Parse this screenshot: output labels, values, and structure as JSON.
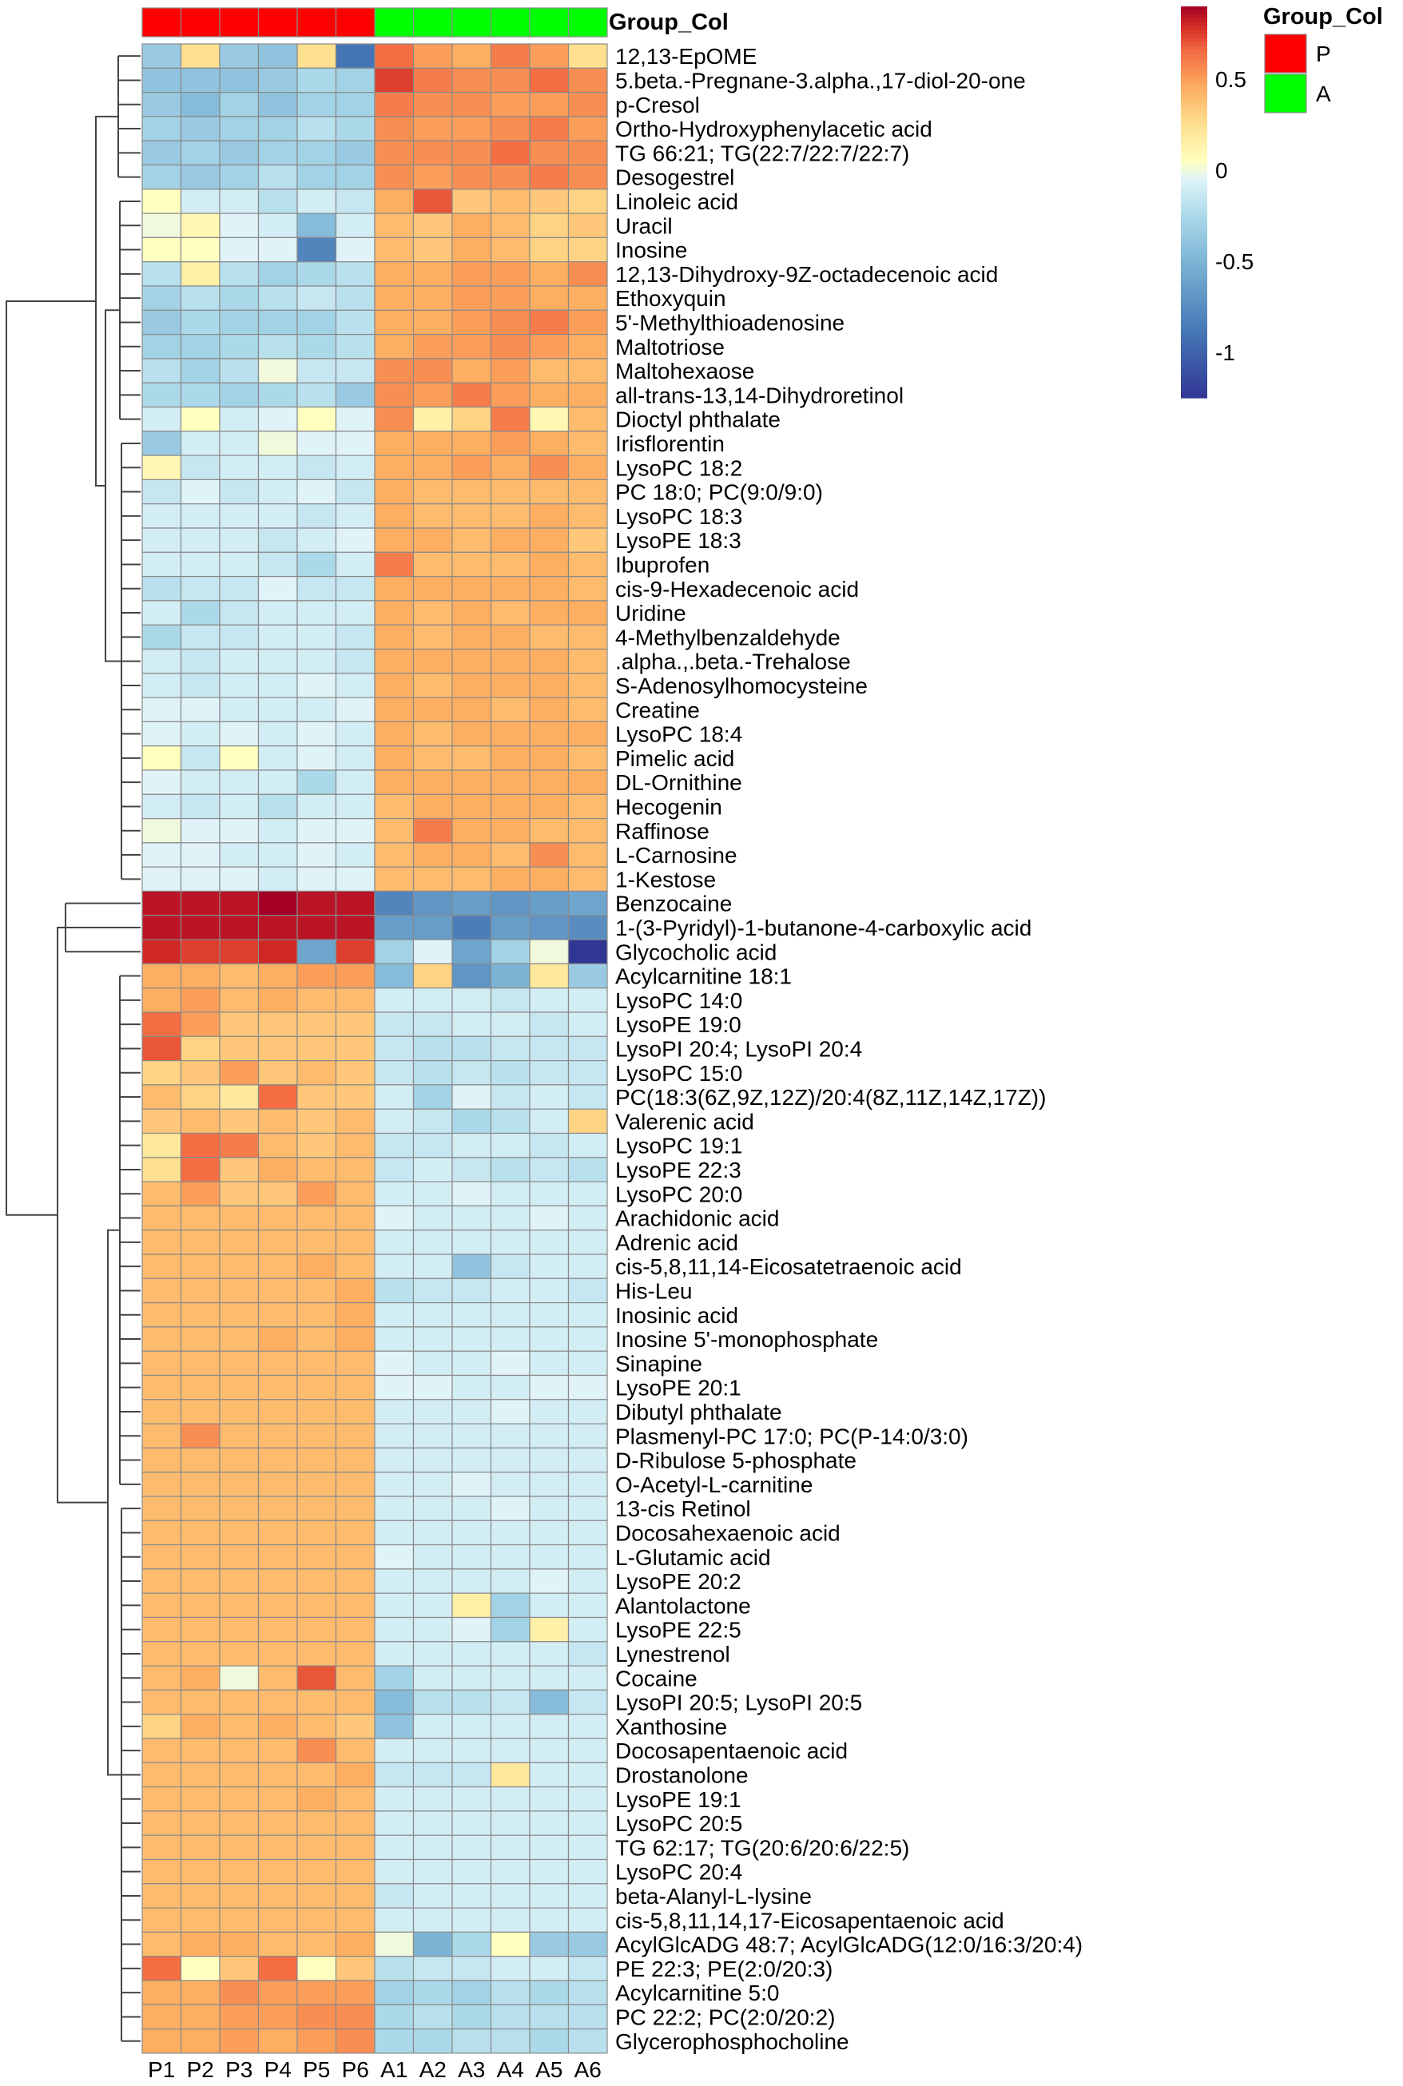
{
  "chart_data": {
    "type": "heatmap",
    "title": "",
    "annotation_title": "Group_Col",
    "annotation_legend_title": "Group_Col",
    "groups": [
      {
        "name": "P",
        "color": "#FF0000"
      },
      {
        "name": "A",
        "color": "#00FF00"
      }
    ],
    "samples": [
      "P1",
      "P2",
      "P3",
      "P4",
      "P5",
      "P6",
      "A1",
      "A2",
      "A3",
      "A4",
      "A5",
      "A6"
    ],
    "sample_groups": [
      "P",
      "P",
      "P",
      "P",
      "P",
      "P",
      "A",
      "A",
      "A",
      "A",
      "A",
      "A"
    ],
    "color_scale": {
      "min": -1.25,
      "max": 0.9,
      "ticks": [
        0.5,
        0,
        -0.5,
        -1
      ],
      "tick_labels": [
        "0.5",
        "0",
        "-0.5",
        "-1"
      ]
    },
    "features": [
      "12,13-EpOME",
      "5.beta.-Pregnane-3.alpha.,17-diol-20-one",
      "p-Cresol",
      "Ortho-Hydroxyphenylacetic acid",
      "TG 66:21; TG(22:7/22:7/22:7)",
      "Desogestrel",
      "Linoleic acid",
      "Uracil",
      "Inosine",
      "12,13-Dihydroxy-9Z-octadecenoic acid",
      "Ethoxyquin",
      "5'-Methylthioadenosine",
      "Maltotriose",
      "Maltohexaose",
      "all-trans-13,14-Dihydroretinol",
      "Dioctyl phthalate",
      "Irisflorentin",
      "LysoPC 18:2",
      "PC 18:0; PC(9:0/9:0)",
      "LysoPC 18:3",
      "LysoPE 18:3",
      "Ibuprofen",
      "cis-9-Hexadecenoic acid",
      "Uridine",
      "4-Methylbenzaldehyde",
      ".alpha.,.beta.-Trehalose",
      "S-Adenosylhomocysteine",
      "Creatine",
      "LysoPC 18:4",
      "Pimelic acid",
      "DL-Ornithine",
      "Hecogenin",
      "Raffinose",
      "L-Carnosine",
      "1-Kestose",
      "Benzocaine",
      "1-(3-Pyridyl)-1-butanone-4-carboxylic acid",
      "Glycocholic acid",
      "Acylcarnitine 18:1",
      "LysoPC 14:0",
      "LysoPE 19:0",
      "LysoPI 20:4; LysoPI 20:4",
      "LysoPC 15:0",
      "PC(18:3(6Z,9Z,12Z)/20:4(8Z,11Z,14Z,17Z))",
      "Valerenic acid",
      "LysoPC 19:1",
      "LysoPE 22:3",
      "LysoPC 20:0",
      "Arachidonic acid",
      "Adrenic acid",
      "cis-5,8,11,14-Eicosatetraenoic acid",
      "His-Leu",
      "Inosinic acid",
      "Inosine 5'-monophosphate",
      "Sinapine",
      "LysoPE 20:1",
      "Dibutyl phthalate",
      "Plasmenyl-PC 17:0; PC(P-14:0/3:0)",
      "D-Ribulose 5-phosphate",
      "O-Acetyl-L-carnitine",
      "13-cis Retinol",
      "Docosahexaenoic acid",
      "L-Glutamic acid",
      "LysoPE 20:2",
      "Alantolactone",
      "LysoPE 22:5",
      "Lynestrenol",
      "Cocaine",
      "LysoPI 20:5; LysoPI 20:5",
      "Xanthosine",
      "Docosapentaenoic acid",
      "Drostanolone",
      "LysoPE 19:1",
      "LysoPC 20:5",
      "TG 62:17; TG(20:6/20:6/22:5)",
      "LysoPC 20:4",
      "beta-Alanyl-L-lysine",
      "cis-5,8,11,14,17-Eicosapentaenoic acid",
      "AcylGlcADG 48:7; AcylGlcADG(12:0/16:3/20:4)",
      "PE 22:3; PE(2:0/20:3)",
      "Acylcarnitine 5:0",
      "PC 22:2; PC(2:0/20:2)",
      "Glycerophosphocholine"
    ],
    "values": [
      [
        -0.35,
        0.25,
        -0.35,
        -0.4,
        0.25,
        -0.9,
        0.65,
        0.5,
        0.45,
        0.6,
        0.5,
        0.25
      ],
      [
        -0.4,
        -0.4,
        -0.4,
        -0.35,
        -0.25,
        -0.3,
        0.75,
        0.6,
        0.55,
        0.55,
        0.65,
        0.55
      ],
      [
        -0.35,
        -0.45,
        -0.3,
        -0.4,
        -0.3,
        -0.3,
        0.6,
        0.55,
        0.55,
        0.5,
        0.5,
        0.55
      ],
      [
        -0.3,
        -0.35,
        -0.3,
        -0.3,
        -0.2,
        -0.25,
        0.55,
        0.5,
        0.5,
        0.55,
        0.6,
        0.5
      ],
      [
        -0.35,
        -0.3,
        -0.35,
        -0.3,
        -0.3,
        -0.35,
        0.55,
        0.55,
        0.55,
        0.65,
        0.55,
        0.55
      ],
      [
        -0.3,
        -0.35,
        -0.3,
        -0.2,
        -0.3,
        -0.3,
        0.55,
        0.5,
        0.55,
        0.55,
        0.6,
        0.55
      ],
      [
        0.05,
        -0.1,
        -0.1,
        -0.2,
        -0.1,
        -0.15,
        0.45,
        0.7,
        0.35,
        0.4,
        0.35,
        0.3
      ],
      [
        0.0,
        0.1,
        -0.05,
        -0.1,
        -0.45,
        -0.1,
        0.4,
        0.35,
        0.45,
        0.4,
        0.3,
        0.35
      ],
      [
        0.05,
        0.05,
        -0.05,
        -0.05,
        -0.8,
        -0.05,
        0.4,
        0.35,
        0.45,
        0.4,
        0.3,
        0.3
      ],
      [
        -0.2,
        0.15,
        -0.2,
        -0.3,
        -0.25,
        -0.2,
        0.45,
        0.45,
        0.5,
        0.5,
        0.45,
        0.55
      ],
      [
        -0.3,
        -0.2,
        -0.25,
        -0.2,
        -0.15,
        -0.2,
        0.45,
        0.45,
        0.5,
        0.5,
        0.45,
        0.45
      ],
      [
        -0.35,
        -0.25,
        -0.3,
        -0.3,
        -0.3,
        -0.2,
        0.45,
        0.45,
        0.5,
        0.55,
        0.6,
        0.5
      ],
      [
        -0.3,
        -0.3,
        -0.25,
        -0.2,
        -0.25,
        -0.2,
        0.45,
        0.5,
        0.5,
        0.55,
        0.5,
        0.45
      ],
      [
        -0.2,
        -0.3,
        -0.2,
        0.0,
        -0.15,
        -0.15,
        0.55,
        0.55,
        0.45,
        0.5,
        0.4,
        0.4
      ],
      [
        -0.25,
        -0.25,
        -0.3,
        -0.25,
        -0.2,
        -0.35,
        0.55,
        0.5,
        0.6,
        0.5,
        0.45,
        0.45
      ],
      [
        -0.1,
        0.05,
        -0.1,
        -0.05,
        0.05,
        -0.05,
        0.55,
        0.15,
        0.3,
        0.6,
        0.1,
        0.4
      ],
      [
        -0.35,
        -0.1,
        -0.1,
        0.0,
        -0.05,
        -0.05,
        0.45,
        0.45,
        0.45,
        0.5,
        0.45,
        0.4
      ],
      [
        0.1,
        -0.15,
        -0.1,
        -0.1,
        -0.15,
        -0.1,
        0.45,
        0.45,
        0.5,
        0.45,
        0.55,
        0.45
      ],
      [
        -0.15,
        -0.05,
        -0.15,
        -0.1,
        -0.05,
        -0.15,
        0.45,
        0.4,
        0.4,
        0.4,
        0.4,
        0.4
      ],
      [
        -0.1,
        -0.1,
        -0.1,
        -0.1,
        -0.15,
        -0.1,
        0.45,
        0.4,
        0.4,
        0.4,
        0.45,
        0.4
      ],
      [
        -0.1,
        -0.1,
        -0.1,
        -0.15,
        -0.1,
        -0.05,
        0.45,
        0.45,
        0.4,
        0.45,
        0.45,
        0.35
      ],
      [
        -0.1,
        -0.1,
        -0.1,
        -0.15,
        -0.25,
        -0.1,
        0.6,
        0.4,
        0.4,
        0.4,
        0.45,
        0.4
      ],
      [
        -0.2,
        -0.15,
        -0.15,
        -0.05,
        -0.15,
        -0.15,
        0.45,
        0.45,
        0.45,
        0.45,
        0.45,
        0.4
      ],
      [
        -0.1,
        -0.25,
        -0.15,
        -0.1,
        -0.1,
        -0.1,
        0.45,
        0.4,
        0.45,
        0.4,
        0.45,
        0.45
      ],
      [
        -0.25,
        -0.15,
        -0.15,
        -0.1,
        -0.1,
        -0.15,
        0.45,
        0.4,
        0.45,
        0.45,
        0.4,
        0.4
      ],
      [
        -0.1,
        -0.15,
        -0.1,
        -0.1,
        -0.1,
        -0.15,
        0.45,
        0.45,
        0.45,
        0.45,
        0.45,
        0.4
      ],
      [
        -0.1,
        -0.15,
        -0.1,
        -0.1,
        -0.05,
        -0.1,
        0.45,
        0.4,
        0.45,
        0.45,
        0.45,
        0.4
      ],
      [
        -0.05,
        -0.05,
        -0.1,
        -0.1,
        -0.1,
        -0.05,
        0.45,
        0.45,
        0.45,
        0.4,
        0.45,
        0.4
      ],
      [
        -0.05,
        -0.1,
        -0.05,
        -0.1,
        -0.05,
        -0.1,
        0.45,
        0.4,
        0.45,
        0.45,
        0.45,
        0.45
      ],
      [
        0.05,
        -0.15,
        0.05,
        -0.1,
        -0.05,
        -0.1,
        0.45,
        0.4,
        0.4,
        0.45,
        0.45,
        0.4
      ],
      [
        -0.05,
        -0.1,
        -0.1,
        -0.1,
        -0.25,
        -0.1,
        0.45,
        0.45,
        0.45,
        0.45,
        0.45,
        0.45
      ],
      [
        -0.1,
        -0.15,
        -0.1,
        -0.2,
        -0.1,
        -0.1,
        0.4,
        0.45,
        0.45,
        0.45,
        0.45,
        0.4
      ],
      [
        0.0,
        -0.05,
        -0.05,
        -0.1,
        -0.05,
        -0.05,
        0.4,
        0.6,
        0.45,
        0.45,
        0.4,
        0.4
      ],
      [
        -0.05,
        -0.05,
        -0.1,
        -0.1,
        -0.05,
        -0.1,
        0.4,
        0.45,
        0.45,
        0.4,
        0.55,
        0.4
      ],
      [
        -0.05,
        -0.05,
        -0.05,
        -0.1,
        -0.05,
        -0.05,
        0.4,
        0.4,
        0.4,
        0.45,
        0.45,
        0.4
      ],
      [
        0.85,
        0.85,
        0.85,
        0.9,
        0.85,
        0.85,
        -0.8,
        -0.7,
        -0.65,
        -0.7,
        -0.65,
        -0.6
      ],
      [
        0.85,
        0.85,
        0.85,
        0.85,
        0.85,
        0.85,
        -0.65,
        -0.65,
        -0.85,
        -0.65,
        -0.7,
        -0.75
      ],
      [
        0.8,
        0.75,
        0.75,
        0.8,
        -0.6,
        0.75,
        -0.3,
        -0.05,
        -0.6,
        -0.3,
        0.0,
        -1.25
      ],
      [
        0.45,
        0.45,
        0.4,
        0.45,
        0.5,
        0.5,
        -0.45,
        0.3,
        -0.7,
        -0.5,
        0.2,
        -0.35
      ],
      [
        0.45,
        0.5,
        0.4,
        0.45,
        0.4,
        0.4,
        -0.1,
        -0.1,
        -0.1,
        -0.15,
        -0.1,
        -0.1
      ],
      [
        0.65,
        0.5,
        0.35,
        0.35,
        0.35,
        0.35,
        -0.15,
        -0.15,
        -0.1,
        -0.1,
        -0.15,
        -0.1
      ],
      [
        0.7,
        0.3,
        0.35,
        0.35,
        0.35,
        0.35,
        -0.15,
        -0.2,
        -0.2,
        -0.15,
        -0.15,
        -0.15
      ],
      [
        0.3,
        0.35,
        0.5,
        0.35,
        0.4,
        0.35,
        -0.15,
        -0.2,
        -0.15,
        -0.2,
        -0.15,
        -0.15
      ],
      [
        0.4,
        0.3,
        0.2,
        0.65,
        0.35,
        0.35,
        -0.1,
        -0.3,
        -0.05,
        -0.15,
        -0.1,
        -0.15
      ],
      [
        0.35,
        0.4,
        0.35,
        0.4,
        0.35,
        0.4,
        -0.1,
        -0.15,
        -0.25,
        -0.2,
        -0.1,
        0.3
      ],
      [
        0.2,
        0.65,
        0.6,
        0.4,
        0.35,
        0.4,
        -0.15,
        -0.15,
        -0.1,
        -0.1,
        -0.15,
        -0.1
      ],
      [
        0.25,
        0.65,
        0.35,
        0.45,
        0.4,
        0.4,
        -0.15,
        -0.1,
        -0.15,
        -0.2,
        -0.15,
        -0.2
      ],
      [
        0.4,
        0.5,
        0.35,
        0.35,
        0.5,
        0.4,
        -0.1,
        -0.1,
        -0.05,
        -0.1,
        -0.1,
        -0.1
      ],
      [
        0.4,
        0.4,
        0.4,
        0.4,
        0.4,
        0.4,
        -0.05,
        -0.1,
        -0.1,
        -0.1,
        -0.05,
        -0.1
      ],
      [
        0.4,
        0.4,
        0.4,
        0.4,
        0.4,
        0.4,
        -0.1,
        -0.1,
        -0.1,
        -0.1,
        -0.1,
        -0.1
      ],
      [
        0.4,
        0.4,
        0.4,
        0.4,
        0.45,
        0.4,
        -0.1,
        -0.1,
        -0.4,
        -0.15,
        -0.1,
        -0.1
      ],
      [
        0.4,
        0.4,
        0.4,
        0.4,
        0.4,
        0.45,
        -0.2,
        -0.15,
        -0.15,
        -0.1,
        -0.1,
        -0.15
      ],
      [
        0.4,
        0.4,
        0.4,
        0.4,
        0.4,
        0.45,
        -0.1,
        -0.1,
        -0.1,
        -0.1,
        -0.1,
        -0.1
      ],
      [
        0.4,
        0.4,
        0.4,
        0.45,
        0.4,
        0.45,
        -0.1,
        -0.1,
        -0.1,
        -0.1,
        -0.1,
        -0.1
      ],
      [
        0.4,
        0.4,
        0.4,
        0.4,
        0.4,
        0.4,
        -0.05,
        -0.1,
        -0.1,
        -0.05,
        -0.1,
        -0.1
      ],
      [
        0.4,
        0.4,
        0.4,
        0.4,
        0.4,
        0.4,
        -0.05,
        -0.05,
        -0.1,
        -0.1,
        -0.05,
        -0.05
      ],
      [
        0.4,
        0.4,
        0.4,
        0.4,
        0.4,
        0.4,
        -0.1,
        -0.1,
        -0.1,
        -0.05,
        -0.1,
        -0.1
      ],
      [
        0.4,
        0.55,
        0.4,
        0.4,
        0.4,
        0.4,
        -0.1,
        -0.1,
        -0.1,
        -0.1,
        -0.1,
        -0.1
      ],
      [
        0.4,
        0.4,
        0.4,
        0.4,
        0.4,
        0.4,
        -0.1,
        -0.1,
        -0.1,
        -0.1,
        -0.1,
        -0.1
      ],
      [
        0.4,
        0.4,
        0.4,
        0.4,
        0.4,
        0.4,
        -0.1,
        -0.1,
        -0.05,
        -0.1,
        -0.1,
        -0.1
      ],
      [
        0.4,
        0.4,
        0.4,
        0.4,
        0.4,
        0.4,
        -0.1,
        -0.1,
        -0.1,
        -0.05,
        -0.1,
        -0.1
      ],
      [
        0.4,
        0.4,
        0.4,
        0.4,
        0.4,
        0.4,
        -0.1,
        -0.1,
        -0.1,
        -0.1,
        -0.1,
        -0.1
      ],
      [
        0.4,
        0.4,
        0.4,
        0.4,
        0.4,
        0.4,
        -0.05,
        -0.1,
        -0.1,
        -0.1,
        -0.1,
        -0.1
      ],
      [
        0.4,
        0.4,
        0.4,
        0.4,
        0.4,
        0.4,
        -0.1,
        -0.1,
        -0.1,
        -0.1,
        -0.05,
        -0.1
      ],
      [
        0.4,
        0.4,
        0.4,
        0.4,
        0.4,
        0.4,
        -0.1,
        -0.1,
        0.15,
        -0.3,
        -0.1,
        -0.1
      ],
      [
        0.4,
        0.4,
        0.4,
        0.4,
        0.4,
        0.4,
        -0.1,
        -0.1,
        -0.05,
        -0.3,
        0.15,
        -0.1
      ],
      [
        0.4,
        0.4,
        0.4,
        0.4,
        0.4,
        0.4,
        -0.1,
        -0.1,
        -0.1,
        -0.1,
        -0.1,
        -0.15
      ],
      [
        0.4,
        0.45,
        0.0,
        0.4,
        0.7,
        0.4,
        -0.3,
        -0.1,
        -0.1,
        -0.1,
        -0.1,
        -0.1
      ],
      [
        0.4,
        0.4,
        0.4,
        0.4,
        0.4,
        0.4,
        -0.45,
        -0.2,
        -0.2,
        -0.15,
        -0.45,
        -0.15
      ],
      [
        0.3,
        0.45,
        0.4,
        0.45,
        0.4,
        0.35,
        -0.4,
        -0.1,
        -0.1,
        -0.1,
        -0.1,
        -0.1
      ],
      [
        0.4,
        0.4,
        0.4,
        0.4,
        0.55,
        0.4,
        -0.1,
        -0.1,
        -0.1,
        -0.1,
        -0.1,
        -0.1
      ],
      [
        0.4,
        0.4,
        0.4,
        0.4,
        0.4,
        0.45,
        -0.15,
        -0.15,
        -0.15,
        0.2,
        -0.1,
        -0.1
      ],
      [
        0.4,
        0.4,
        0.4,
        0.4,
        0.45,
        0.4,
        -0.1,
        -0.1,
        -0.1,
        -0.1,
        -0.1,
        -0.1
      ],
      [
        0.4,
        0.4,
        0.4,
        0.4,
        0.4,
        0.4,
        -0.1,
        -0.1,
        -0.1,
        -0.1,
        -0.1,
        -0.1
      ],
      [
        0.4,
        0.4,
        0.4,
        0.4,
        0.4,
        0.4,
        -0.1,
        -0.1,
        -0.1,
        -0.1,
        -0.1,
        -0.1
      ],
      [
        0.4,
        0.4,
        0.4,
        0.4,
        0.4,
        0.4,
        -0.1,
        -0.1,
        -0.1,
        -0.1,
        -0.1,
        -0.1
      ],
      [
        0.4,
        0.4,
        0.4,
        0.4,
        0.4,
        0.4,
        -0.15,
        -0.1,
        -0.1,
        -0.1,
        -0.1,
        -0.1
      ],
      [
        0.4,
        0.4,
        0.4,
        0.4,
        0.4,
        0.4,
        -0.1,
        -0.1,
        -0.1,
        -0.1,
        -0.1,
        -0.1
      ],
      [
        0.4,
        0.45,
        0.45,
        0.4,
        0.4,
        0.45,
        0.0,
        -0.5,
        -0.25,
        0.05,
        -0.35,
        -0.35
      ],
      [
        0.65,
        0.05,
        0.35,
        0.65,
        0.05,
        0.35,
        -0.2,
        -0.15,
        -0.15,
        -0.1,
        -0.1,
        -0.15
      ],
      [
        0.45,
        0.45,
        0.55,
        0.5,
        0.5,
        0.5,
        -0.3,
        -0.25,
        -0.3,
        -0.2,
        -0.25,
        -0.2
      ],
      [
        0.45,
        0.45,
        0.5,
        0.5,
        0.55,
        0.55,
        -0.25,
        -0.2,
        -0.25,
        -0.2,
        -0.2,
        -0.2
      ],
      [
        0.45,
        0.45,
        0.5,
        0.45,
        0.5,
        0.55,
        -0.25,
        -0.25,
        -0.2,
        -0.2,
        -0.25,
        -0.2
      ]
    ]
  }
}
